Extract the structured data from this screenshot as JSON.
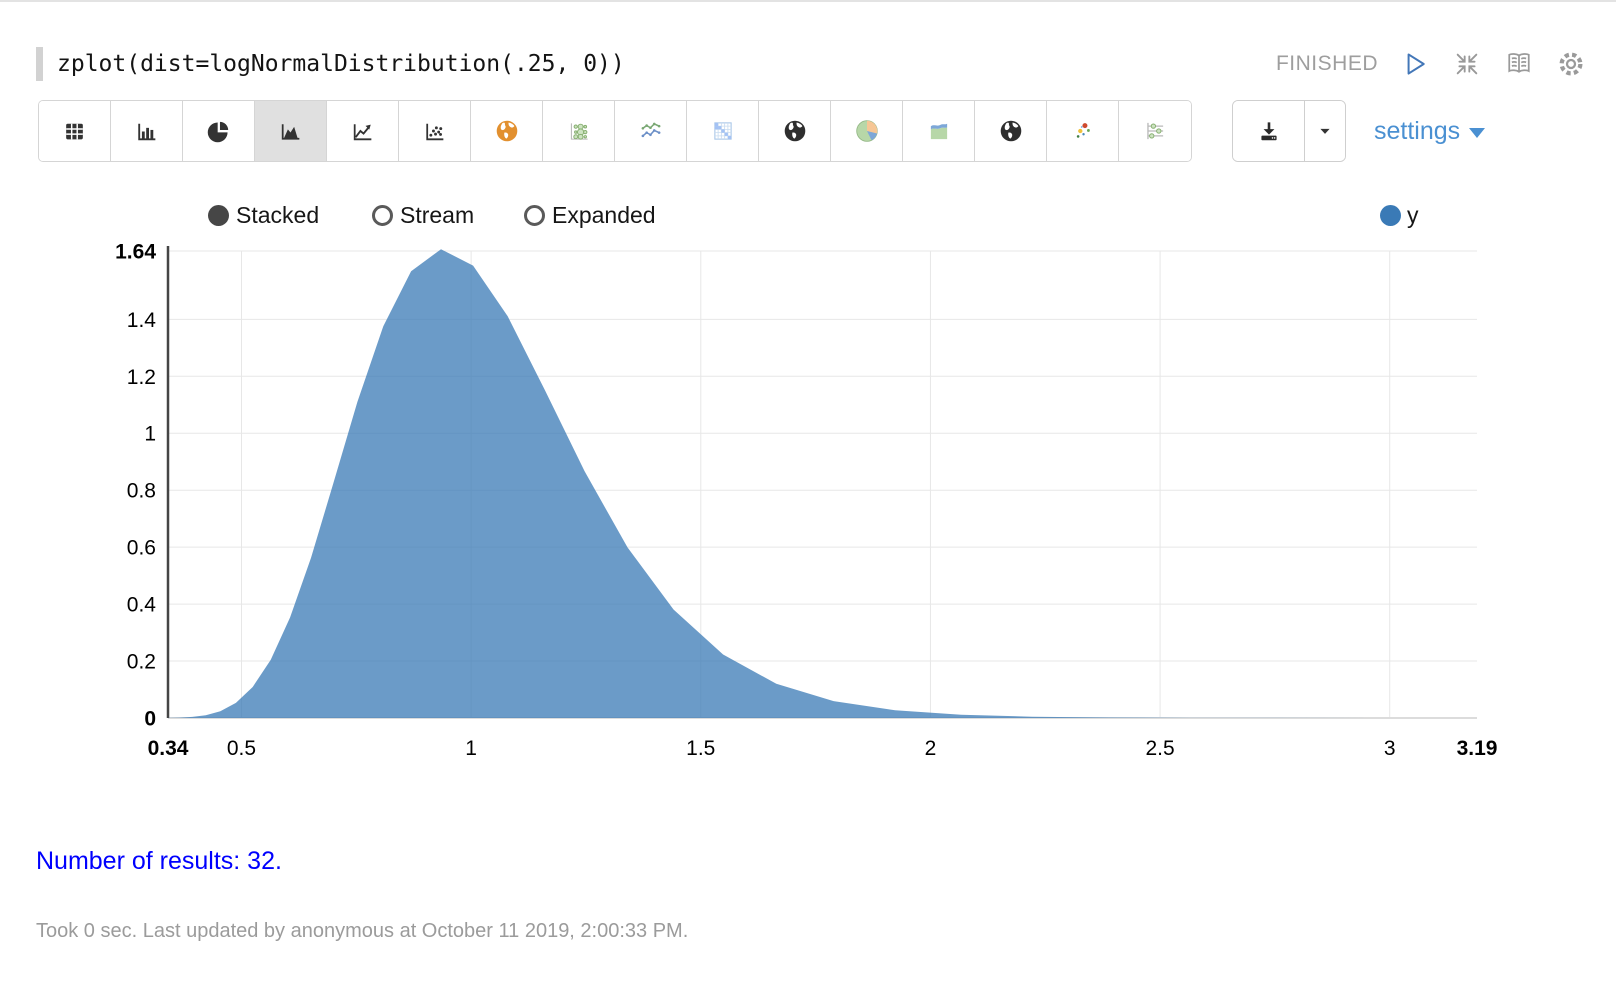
{
  "code": {
    "text": "zplot(dist=logNormalDistribution(.25, 0))"
  },
  "status": {
    "label": "FINISHED"
  },
  "paragraph_icons": [
    "play-icon",
    "compress-icon",
    "book-icon",
    "gear-icon"
  ],
  "toolbar": {
    "chart_type_icons": [
      "table-icon",
      "bar-chart-icon",
      "pie-chart-icon",
      "area-chart-icon",
      "line-chart-icon",
      "scatter-chart-icon",
      "globe-orange-icon",
      "bubble-chart-icon",
      "multi-line-chart-icon",
      "heatmap-icon",
      "globe-dark-icon",
      "pie-chart-color-icon",
      "area-chart-color-icon",
      "globe-dark2-icon",
      "scatter-color-icon",
      "sliders-icon"
    ],
    "selected_index": 3,
    "download_icon": "download-icon",
    "settings_label": "settings"
  },
  "controls": {
    "options": [
      {
        "label": "Stacked",
        "selected": true
      },
      {
        "label": "Stream",
        "selected": false
      },
      {
        "label": "Expanded",
        "selected": false
      }
    ]
  },
  "legend": {
    "label": "y",
    "color": "#3a7ab6"
  },
  "results": {
    "text": "Number of results: 32."
  },
  "footer": {
    "text": "Took 0 sec. Last updated by anonymous at October 11 2019, 2:00:33 PM."
  },
  "chart_data": {
    "type": "area",
    "title": "",
    "xlabel": "",
    "ylabel": "",
    "x": [
      0.34,
      0.3655,
      0.3929,
      0.4223,
      0.4539,
      0.4879,
      0.5245,
      0.5637,
      0.6059,
      0.6513,
      0.7,
      0.7524,
      0.8088,
      0.8693,
      0.9343,
      1.0043,
      1.0795,
      1.1602,
      1.2471,
      1.3404,
      1.4407,
      1.5486,
      1.6645,
      1.7891,
      1.923,
      2.0669,
      2.2216,
      2.3879,
      2.5666,
      2.7587,
      2.9652,
      3.19
    ],
    "series": [
      {
        "name": "y",
        "values": [
          0.0004,
          0.0013,
          0.0038,
          0.0099,
          0.0239,
          0.0531,
          0.1088,
          0.2042,
          0.3532,
          0.5624,
          0.8239,
          1.1099,
          1.3758,
          1.569,
          1.6462,
          1.5887,
          1.4107,
          1.1527,
          0.8663,
          0.599,
          0.3811,
          0.223,
          0.1201,
          0.0595,
          0.0271,
          0.0113,
          0.0044,
          0.0016,
          0.0005,
          0.0002,
          4e-05,
          1e-05
        ]
      }
    ],
    "xlim": [
      0.34,
      3.19
    ],
    "ylim": [
      0,
      1.64
    ],
    "x_tick_values": [
      0.34,
      0.5,
      1,
      1.5,
      2,
      2.5,
      3,
      3.19
    ],
    "x_tick_labels": [
      "0.34",
      "0.5",
      "1",
      "1.5",
      "2",
      "2.5",
      "3",
      "3.19"
    ],
    "y_tick_values": [
      1.64,
      1.4,
      1.2,
      1,
      0.8,
      0.6,
      0.4,
      0.2,
      0
    ],
    "y_tick_labels": [
      "1.64",
      "1.4",
      "1.2",
      "1",
      "0.8",
      "0.6",
      "0.4",
      "0.2",
      "0"
    ],
    "grid": true,
    "area_color": "#3a7ab6",
    "area_opacity": 0.75,
    "legend_position": "top-right",
    "number_of_results": 32
  }
}
